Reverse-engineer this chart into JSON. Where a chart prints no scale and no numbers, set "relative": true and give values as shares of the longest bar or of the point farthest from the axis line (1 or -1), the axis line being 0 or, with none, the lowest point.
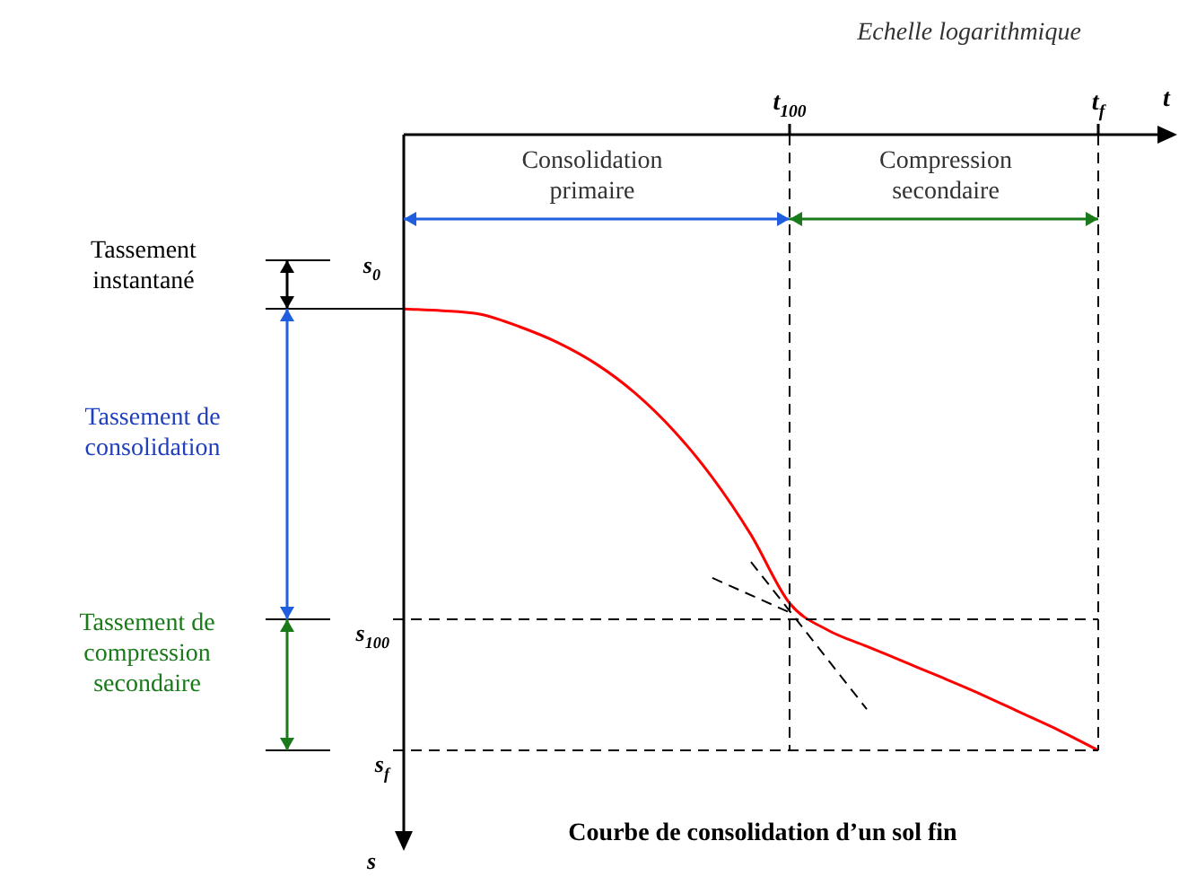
{
  "chart_data": {
    "type": "line",
    "title": "Courbe de consolidation d’un sol fin",
    "xlabel": "t",
    "ylabel": "s",
    "relative": true,
    "categories": [
      null,
      null,
      null,
      null,
      null,
      null,
      null,
      null,
      null,
      null,
      "t$_{100}$",
      null,
      null,
      null,
      null,
      null,
      null,
      null,
      "t$_{f}$"
    ],
    "series": [
      {
        "color": "#ff0000",
        "values": [
          -0.283,
          -0.286,
          -0.292,
          -0.312,
          -0.338,
          -0.373,
          -0.42,
          -0.481,
          -0.557,
          -0.65,
          -0.761,
          -0.805,
          -0.831,
          -0.857,
          -0.883,
          -0.91,
          -0.939,
          -0.968,
          -1.0
        ]
      },
      {
        "color": "#000000",
        "line_style": "dashed",
        "values": [
          null,
          null,
          null,
          null,
          null,
          null,
          null,
          null,
          -0.72,
          null,
          -0.776,
          null,
          null,
          null,
          null,
          null,
          null,
          null,
          null
        ]
      },
      {
        "color": "#000000",
        "line_style": "dashed",
        "values": [
          null,
          null,
          null,
          null,
          null,
          null,
          null,
          null,
          null,
          -0.694,
          null,
          null,
          -0.933,
          null,
          null,
          null,
          null,
          null,
          null
        ]
      }
    ],
    "ref_lines": [
      {
        "axis": "y",
        "value": -0.787,
        "label": "s$_{100}$",
        "line_style": "dashed"
      },
      {
        "axis": "y",
        "value": -1,
        "label": "s$_{f}$",
        "line_style": "dashed"
      },
      {
        "axis": "x",
        "value": "t$_{100}$",
        "line_style": "dashed"
      },
      {
        "axis": "x",
        "value": "t$_{f}$",
        "line_style": "dashed"
      }
    ],
    "annotations": [
      "Echelle logarithmique",
      "s$_{0}$",
      "Tassement instantané",
      "Tassement de consolidation",
      "Tassement de compression secondaire",
      "Consolidation primaire",
      "Compression secondaire"
    ]
  }
}
